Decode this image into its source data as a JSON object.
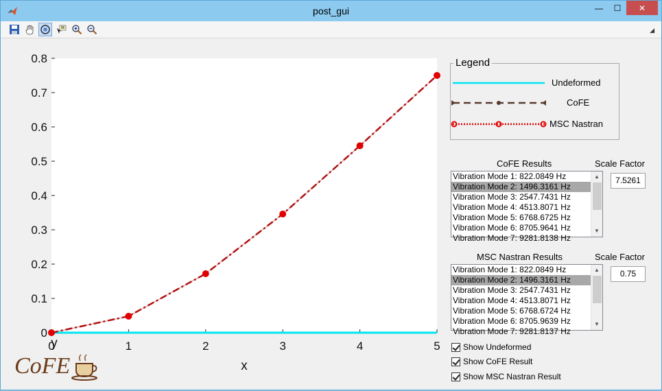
{
  "window": {
    "title": "post_gui"
  },
  "titlebar": {
    "minimize_glyph": "—",
    "maximize_glyph": "☐",
    "close_glyph": "✕"
  },
  "toolbar": {
    "tools": [
      "save-icon",
      "pan-hand-icon",
      "rotate-3d-icon",
      "data-cursor-icon",
      "zoom-in-icon",
      "zoom-out-icon"
    ],
    "active_tool": "rotate-3d-icon"
  },
  "colors": {
    "undeformed": "#00e5f0",
    "cofe": "#5a3a30",
    "nastran": "#e00000",
    "plot_line": "#b01010"
  },
  "chart_data": {
    "type": "line",
    "xlabel": "x",
    "ylabel": "y",
    "xlim": [
      0,
      5
    ],
    "ylim": [
      0,
      0.8
    ],
    "x_ticks": [
      "0",
      "1",
      "2",
      "3",
      "4",
      "5"
    ],
    "y_ticks": [
      "0",
      "0.1",
      "0.2",
      "0.3",
      "0.4",
      "0.5",
      "0.6",
      "0.7",
      "0.8"
    ],
    "x": [
      0,
      1,
      2,
      3,
      4,
      5
    ],
    "series": [
      {
        "name": "Undeformed",
        "values": [
          0,
          0,
          0,
          0,
          0,
          0
        ]
      },
      {
        "name": "CoFE",
        "values": [
          0,
          0.048,
          0.172,
          0.346,
          0.545,
          0.75
        ]
      },
      {
        "name": "MSC Nastran",
        "values": [
          0,
          0.048,
          0.172,
          0.346,
          0.545,
          0.75
        ]
      }
    ]
  },
  "legend": {
    "title": "Legend",
    "items": [
      "Undeformed",
      "CoFE",
      "MSC Nastran"
    ]
  },
  "cofe": {
    "title": "CoFE Results",
    "scale_label": "Scale Factor",
    "scale_value": "7.5261",
    "selected_index": 1,
    "modes": [
      "Vibration Mode 1: 822.0849 Hz",
      "Vibration Mode 2: 1496.3161 Hz",
      "Vibration Mode 3: 2547.7431 Hz",
      "Vibration Mode 4: 4513.8071 Hz",
      "Vibration Mode 5: 6768.6725 Hz",
      "Vibration Mode 6: 8705.9641 Hz",
      "Vibration Mode 7: 9281.8138 Hz"
    ]
  },
  "nastran": {
    "title": "MSC Nastran Results",
    "scale_label": "Scale Factor",
    "scale_value": "0.75",
    "selected_index": 1,
    "modes": [
      "Vibration Mode 1: 822.0849 Hz",
      "Vibration Mode 2: 1496.3161 Hz",
      "Vibration Mode 3: 2547.7431 Hz",
      "Vibration Mode 4: 4513.8071 Hz",
      "Vibration Mode 5: 6768.6724 Hz",
      "Vibration Mode 6: 8705.9639 Hz",
      "Vibration Mode 7: 9281.8137 Hz"
    ]
  },
  "checkboxes": [
    {
      "label": "Show Undeformed",
      "checked": true
    },
    {
      "label": "Show CoFE Result",
      "checked": true
    },
    {
      "label": "Show MSC Nastran Result",
      "checked": true
    }
  ],
  "logo": {
    "text": "CoFE"
  }
}
